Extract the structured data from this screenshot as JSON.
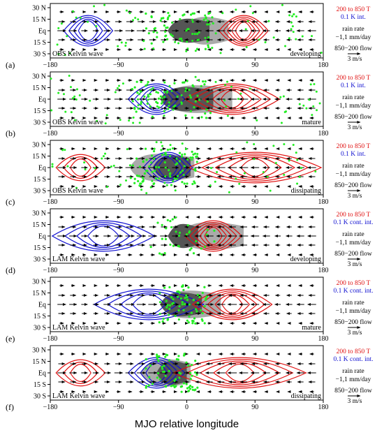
{
  "x_title": "MJO relative longitude",
  "x_ticks": [
    "−180",
    "−90",
    "0",
    "90",
    "180"
  ],
  "y_ticks": [
    "30 N",
    "15 N",
    "Eq",
    "15 S",
    "30 S"
  ],
  "colors": {
    "warm": "#e01010",
    "cold": "#1010d0",
    "rain": "#22ee22",
    "shade_light": "#aaaaaa",
    "shade_dark": "#555555"
  },
  "legend": {
    "rain1": "rain rate",
    "rain2": "−1,1 mm/day",
    "flow": "850−200 flow",
    "scale": "3 m/s",
    "temp_title": "200 to 850 T"
  },
  "panels": [
    {
      "tag": "(a)",
      "source": "OBS Kelvin wave",
      "phase": "developing",
      "interval": "0.1 K int."
    },
    {
      "tag": "(b)",
      "source": "OBS Kelvin wave",
      "phase": "mature",
      "interval": "0.1 K int."
    },
    {
      "tag": "(c)",
      "source": "OBS Kelvin wave",
      "phase": "dissipating",
      "interval": "0.1 K int."
    },
    {
      "tag": "(d)",
      "source": "LAM Kelvin wave",
      "phase": "developing",
      "interval": "0.1 K cont. int."
    },
    {
      "tag": "(e)",
      "source": "LAM Kelvin wave",
      "phase": "mature",
      "interval": "0.1 K cont. int."
    },
    {
      "tag": "(f)",
      "source": "LAM Kelvin wave",
      "phase": "dissipating",
      "interval": "0.1 K cont. int."
    }
  ]
}
